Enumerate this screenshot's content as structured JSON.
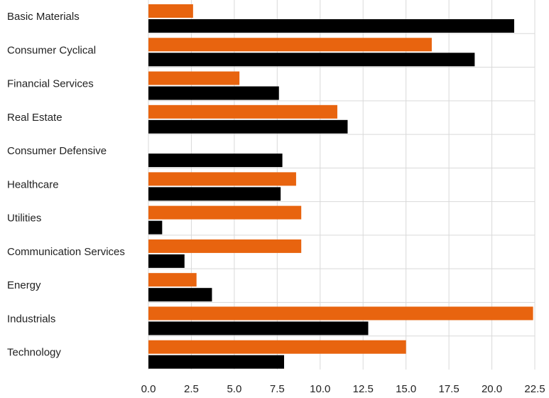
{
  "chart_data": {
    "type": "bar",
    "orientation": "horizontal",
    "categories": [
      "Basic Materials",
      "Consumer Cyclical",
      "Financial Services",
      "Real Estate",
      "Consumer Defensive",
      "Healthcare",
      "Utilities",
      "Communication Services",
      "Energy",
      "Industrials",
      "Technology"
    ],
    "series": [
      {
        "color": "#E8640F",
        "values": [
          2.6,
          16.5,
          5.3,
          11.0,
          0,
          8.6,
          8.9,
          8.9,
          2.8,
          22.4,
          15.0
        ]
      },
      {
        "color": "#000000",
        "values": [
          21.3,
          19.0,
          7.6,
          11.6,
          7.8,
          7.7,
          0.8,
          2.1,
          3.7,
          12.8,
          7.9
        ]
      }
    ],
    "xlim": [
      0,
      22.5
    ],
    "xticks": [
      "0.0",
      "2.5",
      "5.0",
      "7.5",
      "10.0",
      "12.5",
      "15.0",
      "17.5",
      "20.0",
      "22.5"
    ],
    "grid": true,
    "legend": "none"
  }
}
